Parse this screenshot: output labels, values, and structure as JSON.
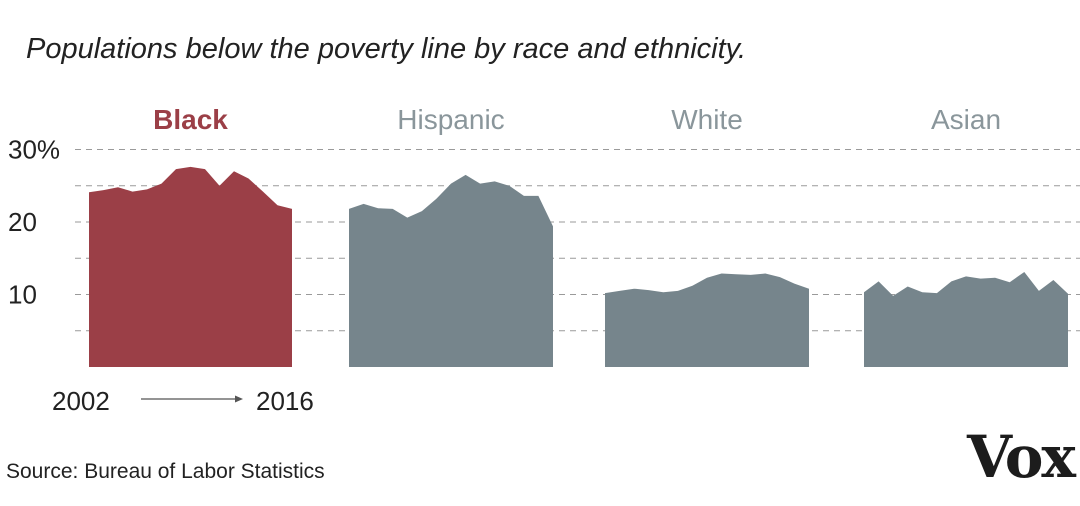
{
  "chart_data": {
    "type": "area",
    "title": "Populations below the poverty line by race and ethnicity.",
    "ylim": [
      0,
      30
    ],
    "y_ticks": [
      10,
      20,
      30
    ],
    "y_tick_labels": [
      "10",
      "20",
      "30%"
    ],
    "grid": true,
    "x_range_labels": {
      "start": "2002",
      "end": "2016"
    },
    "x": [
      2002,
      2003,
      2004,
      2005,
      2006,
      2007,
      2008,
      2009,
      2010,
      2011,
      2012,
      2013,
      2014,
      2015,
      2016
    ],
    "highlight_color": "#9b3f47",
    "base_color": "#76858c",
    "label_muted_color": "#8a969b",
    "series": [
      {
        "name": "Black",
        "highlight": true,
        "values": [
          24.1,
          24.4,
          24.8,
          24.2,
          24.5,
          25.3,
          27.3,
          27.6,
          27.3,
          25.0,
          27.0,
          26.0,
          24.2,
          22.3,
          21.8
        ]
      },
      {
        "name": "Hispanic",
        "highlight": false,
        "values": [
          21.8,
          22.5,
          21.9,
          21.8,
          20.6,
          21.5,
          23.2,
          25.3,
          26.5,
          25.3,
          25.6,
          25.0,
          23.6,
          23.6,
          19.4
        ]
      },
      {
        "name": "White",
        "highlight": false,
        "values": [
          10.2,
          10.5,
          10.8,
          10.6,
          10.3,
          10.5,
          11.2,
          12.3,
          12.9,
          12.8,
          12.7,
          12.9,
          12.4,
          11.5,
          10.8
        ]
      },
      {
        "name": "Asian",
        "highlight": false,
        "values": [
          10.3,
          11.8,
          9.8,
          11.1,
          10.3,
          10.2,
          11.8,
          12.5,
          12.2,
          12.3,
          11.7,
          13.1,
          10.5,
          12.0,
          10.1
        ]
      }
    ]
  },
  "source": "Source: Bureau of Labor Statistics",
  "logo_text": "Vox"
}
